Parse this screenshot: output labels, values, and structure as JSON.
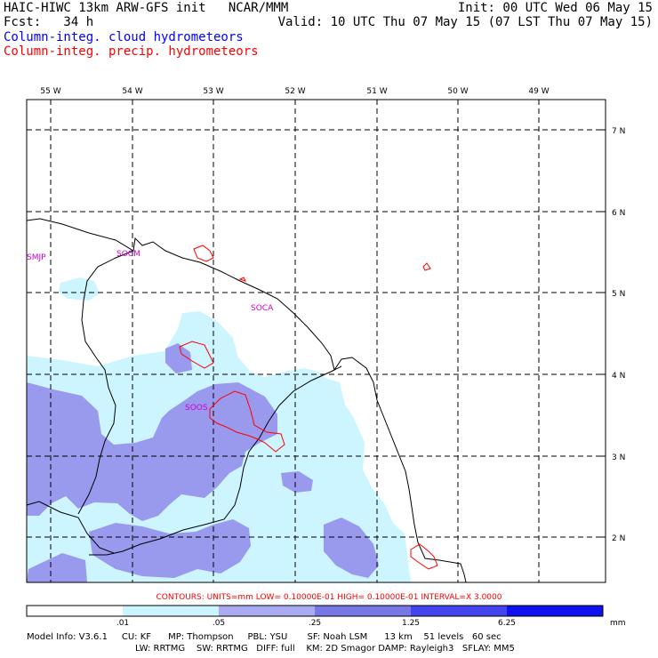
{
  "header": {
    "line1_left": "HAIC-HIWC 13km ARW-GFS init   NCAR/MMM",
    "line1_right": "Init: 00 UTC Wed 06 May 15",
    "line2_left": "Fcst:   34 h",
    "line2_right": "Valid: 10 UTC Thu 07 May 15 (07 LST Thu 07 May 15)",
    "field1": "Column-integ. cloud hydrometeors",
    "field2": "Column-integ. precip. hydrometeors"
  },
  "map": {
    "lon_labels": [
      "55 W",
      "54 W",
      "53 W",
      "52 W",
      "51 W",
      "50 W",
      "49 W"
    ],
    "lat_labels": [
      "7 N",
      "6 N",
      "5 N",
      "4 N",
      "3 N",
      "2 N"
    ],
    "stations": [
      "SMJP",
      "SOCM",
      "SOCA",
      "SOOS"
    ],
    "colors": {
      "light": "#ccf5ff",
      "medium": "#9999ee",
      "contour": "#ff0000",
      "station": "#cc00cc"
    }
  },
  "contours_line": "CONTOURS:  UNITS=mm   LOW= 0.10000E-01   HIGH= 0.10000E-01   INTERVAL=X  3.0000",
  "scale": {
    "labels": [
      ".01",
      ".05",
      ".25",
      "1.25",
      "6.25"
    ],
    "units": "mm",
    "colors": [
      "#ffffff",
      "#ccf5ff",
      "#aaaaf0",
      "#7777e6",
      "#4444ee",
      "#1111ee"
    ]
  },
  "model_info": {
    "line1": "Model Info: V3.6.1     CU: KF      MP: Thompson     PBL: YSU       SF: Noah LSM      13 km    51 levels   60 sec",
    "line2": "LW: RRTMG    SW: RRTMG   DIFF: full    KM: 2D Smagor DAMP: Rayleigh3   SFLAY: MM5"
  }
}
